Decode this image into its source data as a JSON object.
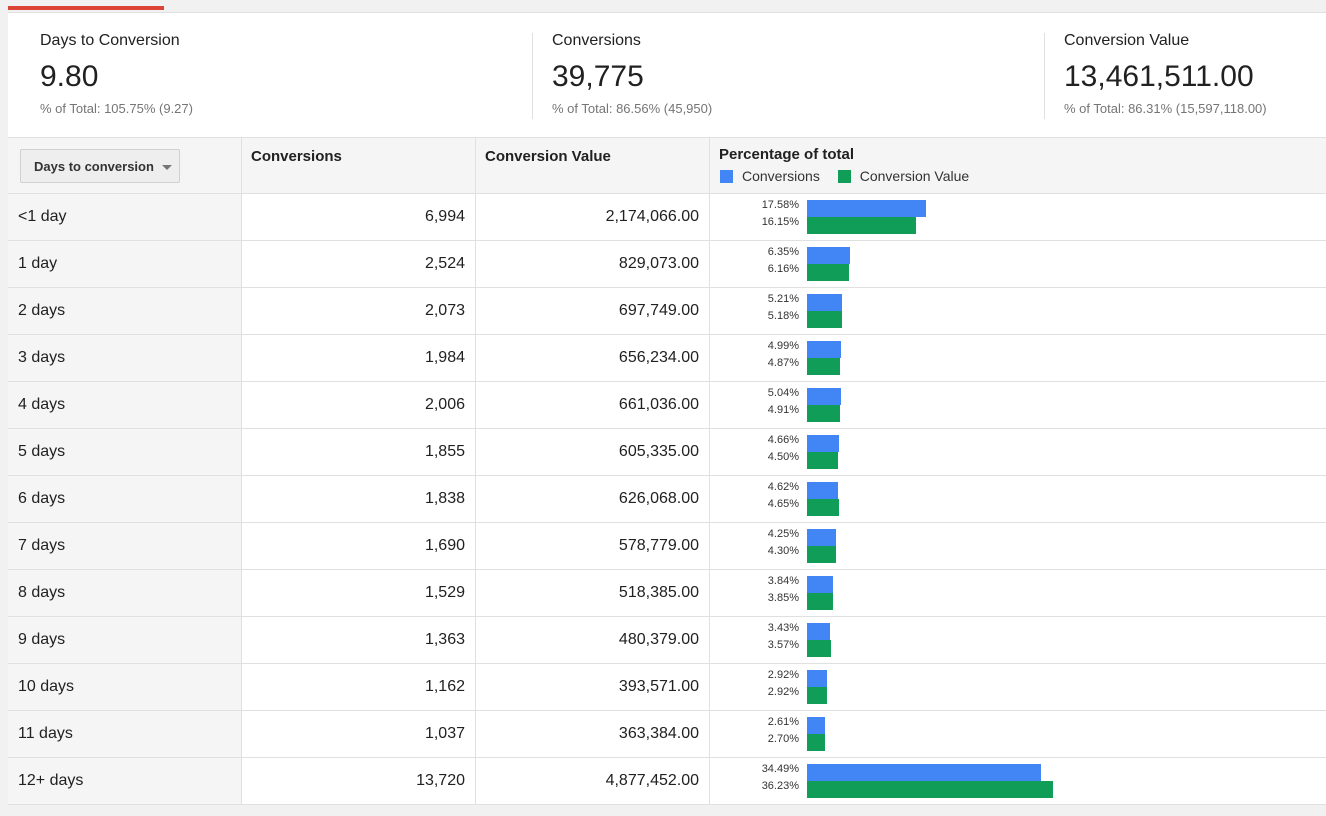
{
  "colors": {
    "accent": "#db4437",
    "conversions": "#4285f4",
    "conversion_value": "#0f9d58"
  },
  "scorecards": [
    {
      "label": "Days to Conversion",
      "value": "9.80",
      "sub": "% of Total: 105.75% (9.27)"
    },
    {
      "label": "Conversions",
      "value": "39,775",
      "sub": "% of Total: 86.56% (45,950)"
    },
    {
      "label": "Conversion Value",
      "value": "13,461,511.00",
      "sub": "% of Total: 86.31% (15,597,118.00)"
    }
  ],
  "table": {
    "dimension_dropdown": {
      "label": "Days to conversion",
      "icon": "chevron-down-icon"
    },
    "headers": {
      "conversions": "Conversions",
      "conversion_value": "Conversion Value",
      "percentage": "Percentage of total"
    },
    "legend": [
      "Conversions",
      "Conversion Value"
    ],
    "rows": [
      {
        "label": "<1 day",
        "conversions": "6,994",
        "value": "2,174,066.00",
        "pct_conv": "17.58%",
        "pct_val": "16.15%",
        "conv_pct": 17.58,
        "val_pct": 16.15
      },
      {
        "label": "1 day",
        "conversions": "2,524",
        "value": "829,073.00",
        "pct_conv": "6.35%",
        "pct_val": "6.16%",
        "conv_pct": 6.35,
        "val_pct": 6.16
      },
      {
        "label": "2 days",
        "conversions": "2,073",
        "value": "697,749.00",
        "pct_conv": "5.21%",
        "pct_val": "5.18%",
        "conv_pct": 5.21,
        "val_pct": 5.18
      },
      {
        "label": "3 days",
        "conversions": "1,984",
        "value": "656,234.00",
        "pct_conv": "4.99%",
        "pct_val": "4.87%",
        "conv_pct": 4.99,
        "val_pct": 4.87
      },
      {
        "label": "4 days",
        "conversions": "2,006",
        "value": "661,036.00",
        "pct_conv": "5.04%",
        "pct_val": "4.91%",
        "conv_pct": 5.04,
        "val_pct": 4.91
      },
      {
        "label": "5 days",
        "conversions": "1,855",
        "value": "605,335.00",
        "pct_conv": "4.66%",
        "pct_val": "4.50%",
        "conv_pct": 4.66,
        "val_pct": 4.5
      },
      {
        "label": "6 days",
        "conversions": "1,838",
        "value": "626,068.00",
        "pct_conv": "4.62%",
        "pct_val": "4.65%",
        "conv_pct": 4.62,
        "val_pct": 4.65
      },
      {
        "label": "7 days",
        "conversions": "1,690",
        "value": "578,779.00",
        "pct_conv": "4.25%",
        "pct_val": "4.30%",
        "conv_pct": 4.25,
        "val_pct": 4.3
      },
      {
        "label": "8 days",
        "conversions": "1,529",
        "value": "518,385.00",
        "pct_conv": "3.84%",
        "pct_val": "3.85%",
        "conv_pct": 3.84,
        "val_pct": 3.85
      },
      {
        "label": "9 days",
        "conversions": "1,363",
        "value": "480,379.00",
        "pct_conv": "3.43%",
        "pct_val": "3.57%",
        "conv_pct": 3.43,
        "val_pct": 3.57
      },
      {
        "label": "10 days",
        "conversions": "1,162",
        "value": "393,571.00",
        "pct_conv": "2.92%",
        "pct_val": "2.92%",
        "conv_pct": 2.92,
        "val_pct": 2.92
      },
      {
        "label": "11 days",
        "conversions": "1,037",
        "value": "363,384.00",
        "pct_conv": "2.61%",
        "pct_val": "2.70%",
        "conv_pct": 2.61,
        "val_pct": 2.7
      },
      {
        "label": "12+ days",
        "conversions": "13,720",
        "value": "4,877,452.00",
        "pct_conv": "34.49%",
        "pct_val": "36.23%",
        "conv_pct": 34.49,
        "val_pct": 36.23
      }
    ]
  }
}
